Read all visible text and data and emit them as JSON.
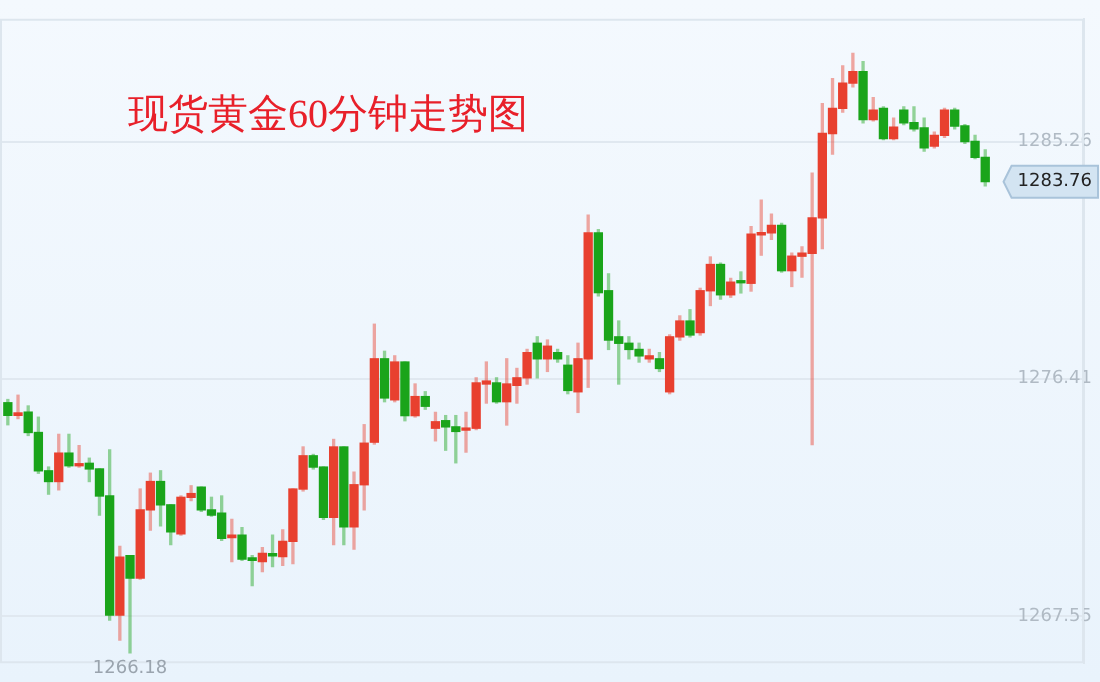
{
  "chart_data": {
    "type": "candlestick",
    "title": "现货黄金60分钟走势图",
    "categories": [
      null,
      null,
      null,
      null,
      null,
      null,
      null,
      null,
      null,
      null,
      null,
      null,
      null,
      null,
      null,
      null,
      null,
      null,
      null,
      null,
      null,
      null,
      null,
      null,
      null,
      null,
      null,
      null,
      null,
      null,
      null,
      null,
      null,
      null,
      null,
      null,
      null,
      null,
      null,
      null,
      null,
      null,
      null,
      null,
      null,
      null,
      null,
      null,
      null,
      null,
      null,
      null,
      null,
      null,
      null,
      null,
      null,
      null,
      null,
      null,
      null,
      null,
      null,
      null,
      null,
      null,
      null,
      null,
      null,
      null,
      null,
      null,
      null,
      null,
      null,
      null,
      null,
      null,
      null,
      null,
      null,
      null,
      null,
      null,
      null,
      null,
      null,
      null,
      null,
      null,
      null,
      null,
      null,
      null,
      null,
      null,
      null
    ],
    "ohlc": [
      [
        1275.51,
        1275.63,
        1274.69,
        1275.04
      ],
      [
        1275.04,
        1275.79,
        1274.92,
        1275.13
      ],
      [
        1275.16,
        1275.39,
        1274.29,
        1274.4
      ],
      [
        1274.4,
        1274.97,
        1272.88,
        1272.97
      ],
      [
        1272.97,
        1273.11,
        1272.1,
        1272.57
      ],
      [
        1272.57,
        1274.33,
        1272.26,
        1273.63
      ],
      [
        1273.63,
        1274.33,
        1273.11,
        1273.16
      ],
      [
        1273.16,
        1273.91,
        1273.11,
        1273.2
      ],
      [
        1273.25,
        1273.44,
        1272.57,
        1273.04
      ],
      [
        1273.04,
        1273.04,
        1271.32,
        1272.03
      ],
      [
        1272.03,
        1273.75,
        1267.4,
        1267.59
      ],
      [
        1267.59,
        1270.15,
        1266.65,
        1269.75
      ],
      [
        1269.8,
        1269.8,
        1266.18,
        1268.97
      ],
      [
        1268.97,
        1272.29,
        1268.93,
        1271.51
      ],
      [
        1271.51,
        1272.88,
        1270.76,
        1272.57
      ],
      [
        1272.57,
        1272.97,
        1270.92,
        1271.7
      ],
      [
        1271.7,
        1271.7,
        1270.22,
        1270.69
      ],
      [
        1270.62,
        1272.03,
        1270.57,
        1271.98
      ],
      [
        1271.98,
        1272.41,
        1271.86,
        1272.12
      ],
      [
        1272.36,
        1272.36,
        1271.46,
        1271.51
      ],
      [
        1271.51,
        1271.98,
        1271.28,
        1271.32
      ],
      [
        1271.39,
        1272.03,
        1270.38,
        1270.45
      ],
      [
        1270.48,
        1271.16,
        1269.58,
        1270.57
      ],
      [
        1270.57,
        1270.85,
        1269.63,
        1269.68
      ],
      [
        1269.72,
        1269.8,
        1268.69,
        1269.63
      ],
      [
        1269.58,
        1270.1,
        1269.21,
        1269.89
      ],
      [
        1269.87,
        1270.57,
        1269.4,
        1269.8
      ],
      [
        1269.77,
        1270.76,
        1269.44,
        1270.34
      ],
      [
        1270.34,
        1272.29,
        1269.51,
        1272.29
      ],
      [
        1272.29,
        1273.86,
        1272.22,
        1273.53
      ],
      [
        1273.53,
        1273.58,
        1273.04,
        1273.11
      ],
      [
        1273.11,
        1273.11,
        1271.16,
        1271.23
      ],
      [
        1271.23,
        1274.14,
        1270.22,
        1273.86
      ],
      [
        1273.86,
        1273.86,
        1270.22,
        1270.88
      ],
      [
        1270.88,
        1272.92,
        1270.05,
        1272.45
      ],
      [
        1272.45,
        1274.69,
        1271.51,
        1274.0
      ],
      [
        1274.04,
        1278.44,
        1273.97,
        1277.15
      ],
      [
        1277.15,
        1277.43,
        1275.55,
        1275.69
      ],
      [
        1275.62,
        1277.26,
        1275.55,
        1277.03
      ],
      [
        1277.03,
        1277.03,
        1274.84,
        1275.03
      ],
      [
        1275.03,
        1276.21,
        1274.98,
        1275.74
      ],
      [
        1275.74,
        1275.92,
        1275.27,
        1275.38
      ],
      [
        1274.56,
        1275.15,
        1274.09,
        1274.8
      ],
      [
        1274.84,
        1275.03,
        1273.74,
        1274.61
      ],
      [
        1274.61,
        1275.03,
        1273.27,
        1274.44
      ],
      [
        1274.49,
        1275.15,
        1273.67,
        1274.56
      ],
      [
        1274.56,
        1276.44,
        1274.51,
        1276.25
      ],
      [
        1276.21,
        1277.03,
        1275.5,
        1276.32
      ],
      [
        1276.25,
        1276.44,
        1275.5,
        1275.55
      ],
      [
        1275.55,
        1277.15,
        1274.68,
        1276.21
      ],
      [
        1276.16,
        1276.79,
        1275.5,
        1276.44
      ],
      [
        1276.44,
        1277.5,
        1276.21,
        1277.38
      ],
      [
        1277.73,
        1277.97,
        1276.44,
        1277.15
      ],
      [
        1277.15,
        1277.85,
        1276.68,
        1277.62
      ],
      [
        1277.38,
        1277.5,
        1277.03,
        1277.15
      ],
      [
        1276.91,
        1277.26,
        1275.85,
        1275.97
      ],
      [
        1275.92,
        1277.73,
        1275.15,
        1277.15
      ],
      [
        1277.15,
        1282.51,
        1276.09,
        1281.85
      ],
      [
        1281.85,
        1281.97,
        1279.5,
        1279.62
      ],
      [
        1279.69,
        1280.32,
        1277.5,
        1277.85
      ],
      [
        1277.97,
        1278.56,
        1276.21,
        1277.73
      ],
      [
        1277.73,
        1277.97,
        1277.15,
        1277.5
      ],
      [
        1277.5,
        1277.73,
        1277.03,
        1277.26
      ],
      [
        1277.15,
        1277.5,
        1277.03,
        1277.26
      ],
      [
        1277.15,
        1277.38,
        1276.68,
        1276.79
      ],
      [
        1275.92,
        1278.04,
        1275.85,
        1277.97
      ],
      [
        1277.97,
        1278.75,
        1277.85,
        1278.56
      ],
      [
        1278.56,
        1278.98,
        1277.97,
        1278.04
      ],
      [
        1278.13,
        1279.78,
        1278.04,
        1279.69
      ],
      [
        1279.69,
        1280.95,
        1279.14,
        1280.67
      ],
      [
        1280.67,
        1280.72,
        1279.38,
        1279.54
      ],
      [
        1279.54,
        1280.15,
        1279.45,
        1280.01
      ],
      [
        1280.04,
        1280.39,
        1279.61,
        1279.99
      ],
      [
        1279.97,
        1282.08,
        1279.68,
        1281.8
      ],
      [
        1281.78,
        1283.07,
        1281.02,
        1281.85
      ],
      [
        1281.85,
        1282.55,
        1281.61,
        1282.13
      ],
      [
        1282.13,
        1282.2,
        1280.39,
        1280.44
      ],
      [
        1280.44,
        1281.09,
        1279.85,
        1280.98
      ],
      [
        1280.98,
        1281.33,
        1280.2,
        1281.09
      ],
      [
        1281.09,
        1284.08,
        1273.95,
        1282.41
      ],
      [
        1282.41,
        1286.67,
        1281.26,
        1285.56
      ],
      [
        1285.56,
        1287.61,
        1284.79,
        1286.5
      ],
      [
        1286.5,
        1288.08,
        1286.36,
        1287.44
      ],
      [
        1287.44,
        1288.55,
        1287.3,
        1287.87
      ],
      [
        1287.87,
        1288.24,
        1285.96,
        1286.08
      ],
      [
        1286.08,
        1286.9,
        1286.03,
        1286.43
      ],
      [
        1286.5,
        1286.55,
        1285.33,
        1285.37
      ],
      [
        1285.37,
        1286.13,
        1285.33,
        1285.8
      ],
      [
        1286.43,
        1286.55,
        1285.89,
        1285.96
      ],
      [
        1285.96,
        1286.55,
        1285.66,
        1285.73
      ],
      [
        1285.77,
        1286.13,
        1284.9,
        1285.02
      ],
      [
        1285.09,
        1285.61,
        1285.02,
        1285.49
      ],
      [
        1285.49,
        1286.5,
        1285.42,
        1286.43
      ],
      [
        1286.43,
        1286.5,
        1285.73,
        1285.84
      ],
      [
        1285.84,
        1285.89,
        1285.19,
        1285.26
      ],
      [
        1285.26,
        1285.49,
        1284.62,
        1284.67
      ],
      [
        1284.67,
        1284.95,
        1283.61,
        1283.76
      ]
    ],
    "ylim": [
      1265.79,
      1289.84
    ],
    "yticks": [
      1267.55,
      1276.41,
      1285.26
    ],
    "grid": "y",
    "legend": false,
    "annotations": [
      "1283.76",
      {
        "text": "1266.18",
        "y": 1266.18
      }
    ]
  }
}
